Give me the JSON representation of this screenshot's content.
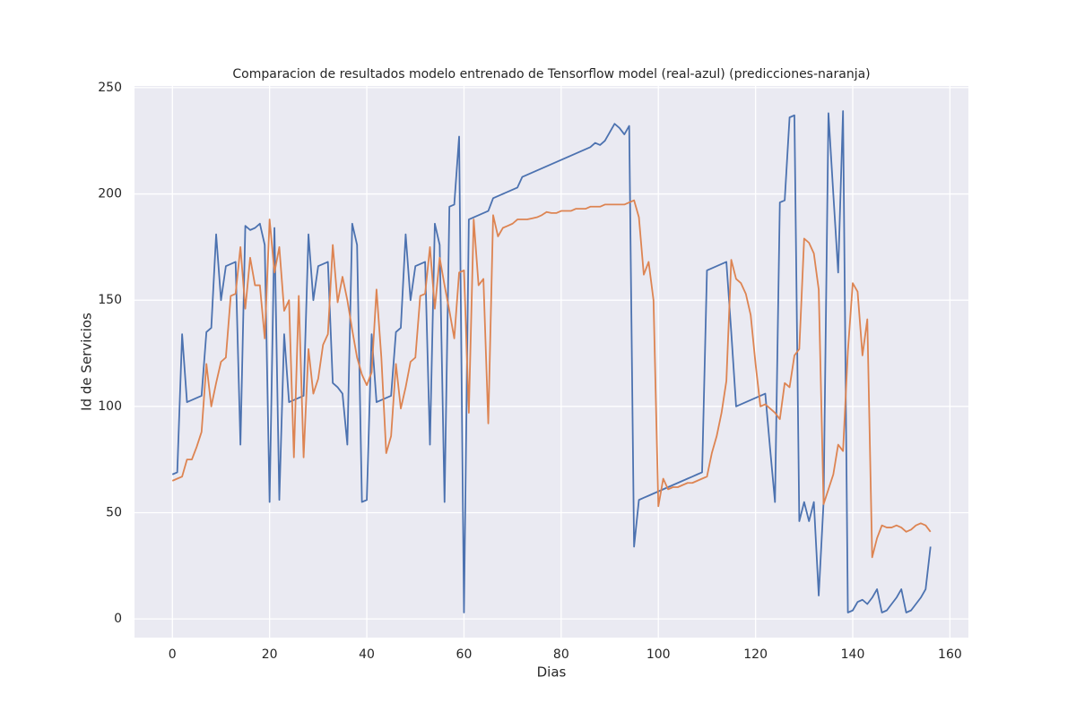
{
  "chart_data": {
    "type": "line",
    "title": "Comparacion de resultados modelo entrenado de Tensorflow model (real-azul) (predicciones-naranja)",
    "x_label": "Dias",
    "y_label": "Id de Servicios",
    "x": [
      0,
      1,
      2,
      3,
      4,
      5,
      6,
      7,
      8,
      9,
      10,
      11,
      12,
      13,
      14,
      15,
      16,
      17,
      18,
      19,
      20,
      21,
      22,
      23,
      24,
      25,
      26,
      27,
      28,
      29,
      30,
      31,
      32,
      33,
      34,
      35,
      36,
      37,
      38,
      39,
      40,
      41,
      42,
      43,
      44,
      45,
      46,
      47,
      48,
      49,
      50,
      51,
      52,
      53,
      54,
      55,
      56,
      57,
      58,
      59,
      60,
      61,
      62,
      63,
      64,
      65,
      66,
      67,
      68,
      69,
      70,
      71,
      72,
      73,
      74,
      75,
      76,
      77,
      78,
      79,
      80,
      81,
      82,
      83,
      84,
      85,
      86,
      87,
      88,
      89,
      90,
      91,
      92,
      93,
      94,
      95,
      96,
      97,
      98,
      99,
      100,
      101,
      102,
      103,
      104,
      105,
      106,
      107,
      108,
      109,
      110,
      111,
      112,
      113,
      114,
      115,
      116,
      117,
      118,
      119,
      120,
      121,
      122,
      123,
      124,
      125,
      126,
      127,
      128,
      129,
      130,
      131,
      132,
      133,
      134,
      135,
      136,
      137,
      138,
      139,
      140,
      141,
      142,
      143,
      144,
      145,
      146,
      147,
      148,
      149,
      150,
      151,
      152,
      153,
      154,
      155,
      156
    ],
    "series": [
      {
        "color": "#4c72b0",
        "values": [
          68,
          69,
          134,
          102,
          103,
          104,
          105,
          135,
          137,
          181,
          150,
          166,
          167,
          168,
          82,
          185,
          183,
          184,
          186,
          176,
          55,
          184,
          56,
          134,
          102,
          103,
          104,
          105,
          181,
          150,
          166,
          167,
          168,
          111,
          109,
          106,
          82,
          186,
          176,
          55,
          56,
          134,
          102,
          103,
          104,
          105,
          135,
          137,
          181,
          150,
          166,
          167,
          168,
          82,
          186,
          176,
          55,
          194,
          195,
          227,
          3,
          188,
          189,
          190,
          191,
          192,
          198,
          199,
          200,
          201,
          202,
          203,
          208,
          209,
          210,
          211,
          212,
          213,
          214,
          215,
          216,
          217,
          218,
          219,
          220,
          221,
          222,
          224,
          223,
          225,
          229,
          233,
          231,
          228,
          232,
          34,
          56,
          57,
          58,
          59,
          60,
          61,
          62,
          63,
          64,
          65,
          66,
          67,
          68,
          69,
          164,
          165,
          166,
          167,
          168,
          135,
          100,
          101,
          102,
          103,
          104,
          105,
          106,
          80,
          55,
          196,
          197,
          236,
          237,
          46,
          55,
          46,
          55,
          11,
          55,
          238,
          200,
          163,
          239,
          3,
          4,
          8,
          9,
          7,
          10,
          14,
          3,
          4,
          7,
          10,
          14,
          3,
          4,
          7,
          10,
          14,
          34
        ]
      },
      {
        "color": "#dd8452",
        "values": [
          65,
          66,
          67,
          75,
          75,
          81,
          88,
          120,
          100,
          111,
          121,
          123,
          152,
          153,
          175,
          146,
          170,
          157,
          157,
          132,
          188,
          163,
          175,
          145,
          150,
          76,
          152,
          76,
          127,
          106,
          113,
          129,
          134,
          176,
          149,
          161,
          150,
          136,
          123,
          115,
          110,
          116,
          155,
          123,
          78,
          86,
          120,
          99,
          109,
          121,
          123,
          152,
          153,
          175,
          146,
          170,
          157,
          145,
          132,
          163,
          164,
          97,
          188,
          157,
          160,
          92,
          190,
          180,
          184,
          185,
          186,
          188,
          188,
          188,
          188.5,
          189,
          190,
          191.5,
          191,
          191,
          192,
          192,
          192,
          193,
          193,
          193,
          194,
          194,
          194,
          195,
          195,
          195,
          195,
          195,
          196,
          197,
          189,
          162,
          168,
          150,
          53,
          66,
          61,
          62,
          62,
          63,
          64,
          64,
          65,
          66,
          67,
          78,
          86,
          97,
          112,
          169,
          160,
          158,
          153,
          143,
          120,
          100,
          101,
          99,
          97,
          94,
          111,
          109,
          124,
          127,
          179,
          177,
          172,
          155,
          54,
          61,
          68,
          82,
          79,
          126,
          158,
          154,
          124,
          141,
          29,
          38,
          44,
          43,
          43,
          44,
          43,
          41,
          42,
          44,
          45,
          44,
          41
        ]
      }
    ],
    "xlim": [
      -7.8,
      163.8
    ],
    "ylim": [
      -8.8,
      250.8
    ],
    "xticks": [
      0,
      20,
      40,
      60,
      80,
      100,
      120,
      140,
      160
    ],
    "yticks": [
      0,
      50,
      100,
      150,
      200,
      250
    ],
    "grid": true,
    "background": "#eaeaf2"
  }
}
